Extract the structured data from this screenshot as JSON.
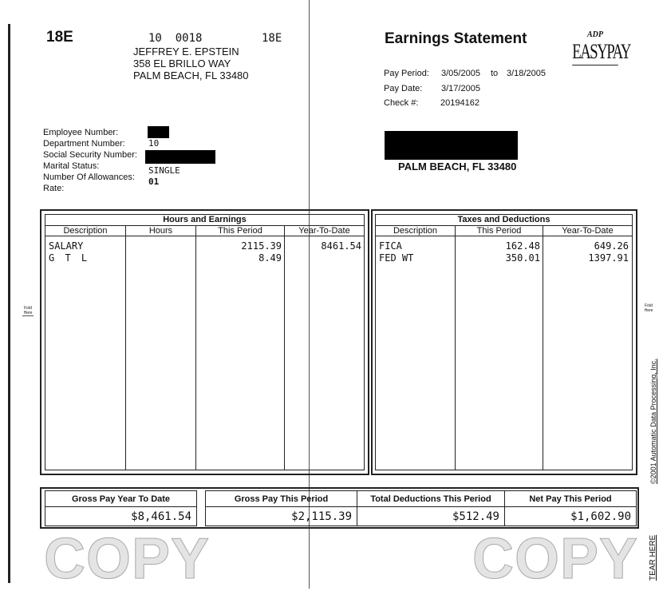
{
  "watermark": "COPY",
  "header": {
    "code_left": "18E",
    "dept_line": "10  0018",
    "code_right": "18E",
    "name": "JEFFREY E. EPSTEIN",
    "address1": "358 EL BRILLO WAY",
    "address2": "PALM BEACH, FL 33480"
  },
  "statement": {
    "title": "Earnings Statement",
    "logo_top": "ADP",
    "logo": "EASYPAY",
    "pay_period_label": "Pay Period:",
    "pay_period_start": "3/05/2005",
    "pay_period_to": "to",
    "pay_period_end": "3/18/2005",
    "pay_date_label": "Pay Date:",
    "pay_date": "3/17/2005",
    "check_label": "Check #:",
    "check_number": "20194162",
    "mail_city": "PALM BEACH, FL 33480"
  },
  "employee": {
    "fields": [
      {
        "label": "Employee Number:",
        "value": ""
      },
      {
        "label": "Department Number:",
        "value": "10"
      },
      {
        "label": "Social Security Number:",
        "value": ""
      },
      {
        "label": "Marital Status:",
        "value": "SINGLE"
      },
      {
        "label": "Number Of Allowances:",
        "value": "01"
      },
      {
        "label": "Rate:",
        "value": ""
      }
    ]
  },
  "earnings": {
    "title": "Hours and Earnings",
    "columns": [
      "Description",
      "Hours",
      "This Period",
      "Year-To-Date"
    ],
    "rows": [
      {
        "desc": "SALARY",
        "hours": "",
        "period": "2115.39",
        "ytd": "8461.54"
      },
      {
        "desc": "G T L",
        "hours": "",
        "period": "8.49",
        "ytd": ""
      }
    ]
  },
  "taxes": {
    "title": "Taxes and Deductions",
    "columns": [
      "Description",
      "This Period",
      "Year-To-Date"
    ],
    "rows": [
      {
        "desc": "FICA",
        "period": "162.48",
        "ytd": "649.26"
      },
      {
        "desc": "FED WT",
        "period": "350.01",
        "ytd": "1397.91"
      }
    ]
  },
  "summary": {
    "gross_ytd_label": "Gross Pay Year To Date",
    "gross_ytd": "$8,461.54",
    "gross_period_label": "Gross Pay This Period",
    "gross_period": "$2,115.39",
    "deductions_label": "Total Deductions This Period",
    "deductions": "$512.49",
    "net_label": "Net Pay This Period",
    "net": "$1,602.90"
  },
  "margins": {
    "fold_left": "Fold Here",
    "fold_right": "Fold Here",
    "copyright": "©2001 Automatic Data Processing, Inc.",
    "tear": "TEAR HERE"
  }
}
